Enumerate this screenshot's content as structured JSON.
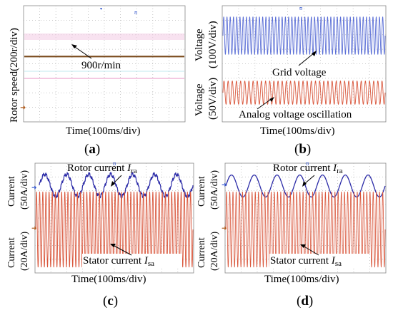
{
  "chart_data": [
    {
      "panel": "(a)",
      "type": "line",
      "ylabel": "Rotor speed(200r/div)",
      "xlabel": "Time(100ms/div)",
      "annotation": "900r/min",
      "series": [
        {
          "values": [
            900,
            900
          ]
        }
      ],
      "x": [
        0,
        1000
      ],
      "ylim": [
        0,
        1600
      ],
      "grid": true,
      "color": "#7a4a1c"
    },
    {
      "panel": "(b)",
      "type": "line",
      "xlabel": "Time(100ms/div)",
      "subplots": [
        {
          "ylabel": [
            "Voltage",
            "(100V/div)"
          ],
          "annotation": "Grid voltage",
          "amplitude": 130,
          "frequency_hz": 50,
          "vdiv": 100,
          "color": "#5b6fd6"
        },
        {
          "ylabel": [
            "Voltage",
            "(50V/div)"
          ],
          "annotation": "Analog voltage oscillation",
          "amplitude": 40,
          "frequency_hz": 39,
          "vdiv": 50,
          "color": "#d9553a"
        }
      ],
      "x": [
        0,
        1000
      ],
      "grid": true
    },
    {
      "panel": "(c)",
      "type": "line",
      "xlabel": "Time(100ms/div)",
      "subplots": [
        {
          "ylabel": [
            "Current",
            "(50A/div)"
          ],
          "annotation": "Rotor current",
          "subscript": "ra",
          "amplitude": 40,
          "frequency_hz": 7,
          "vdiv": 50,
          "color": "#2c2ca8"
        },
        {
          "ylabel": [
            "Current",
            "(20A/div)"
          ],
          "annotation": "Stator current",
          "subscript": "sa",
          "amplitude": 55,
          "frequency_hz": 50,
          "vdiv": 20,
          "color": "#d9553a"
        }
      ],
      "x": [
        0,
        1000
      ],
      "grid": true
    },
    {
      "panel": "(d)",
      "type": "line",
      "xlabel": "Time(100ms/div)",
      "subplots": [
        {
          "ylabel": [
            "Current",
            "(50A/div)"
          ],
          "annotation": "Rotor current",
          "subscript": "ra",
          "amplitude": 40,
          "frequency_hz": 7,
          "vdiv": 50,
          "color": "#2c2ca8"
        },
        {
          "ylabel": [
            "Current",
            "(20A/div)"
          ],
          "annotation": "Stator current",
          "subscript": "sa",
          "amplitude": 55,
          "frequency_hz": 50,
          "vdiv": 20,
          "color": "#d9553a"
        }
      ],
      "x": [
        0,
        1000
      ],
      "grid": true
    }
  ],
  "captions": {
    "a": "a",
    "b": "b",
    "c": "c",
    "d": "d"
  },
  "italic_I": "I"
}
